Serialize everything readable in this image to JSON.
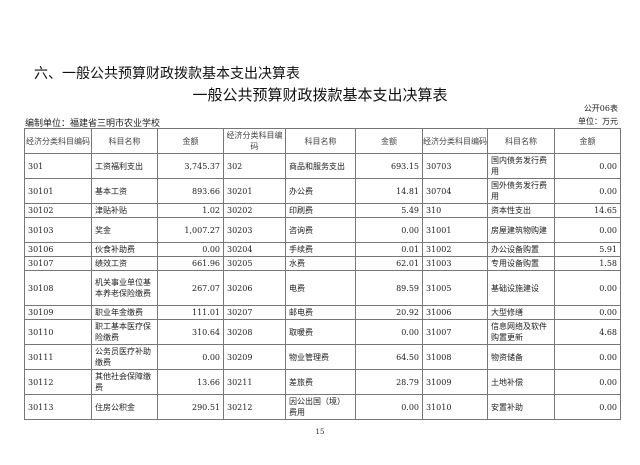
{
  "section_title": "六、一般公共预算财政拨款基本支出决算表",
  "table_title": "一般公共预算财政拨款基本支出决算表",
  "form_no": "公开06表",
  "org": "编制单位：福建省三明市农业学校",
  "unit": "单位：万元",
  "headers": [
    "经济分类科目编码",
    "科目名称",
    "金额",
    "经济分类科目编码",
    "科目名称",
    "金额",
    "经济分类科目编码",
    "科目名称",
    "金额"
  ],
  "rows": [
    [
      "301",
      "工资福利支出",
      "3,745.37",
      "302",
      "商品和服务支出",
      "693.15",
      "30703",
      "国内债务发行费用",
      "0.00"
    ],
    [
      "30101",
      "基本工资",
      "893.66",
      "30201",
      "办公费",
      "14.81",
      "30704",
      "国外债务发行费用",
      "0.00"
    ],
    [
      "30102",
      "津贴补贴",
      "1.02",
      "30202",
      "印刷费",
      "5.49",
      "310",
      "资本性支出",
      "14.65"
    ],
    [
      "30103",
      "奖金",
      "1,007.27",
      "30203",
      "咨询费",
      "0.00",
      "31001",
      "房屋建筑物购建",
      "0.00"
    ],
    [
      "30106",
      "伙食补助费",
      "0.00",
      "30204",
      "手续费",
      "0.01",
      "31002",
      "办公设备购置",
      "5.91"
    ],
    [
      "30107",
      "绩效工资",
      "661.96",
      "30205",
      "水费",
      "62.01",
      "31003",
      "专用设备购置",
      "1.58"
    ],
    [
      "30108",
      "机关事业单位基本养老保险缴费",
      "267.07",
      "30206",
      "电费",
      "89.59",
      "31005",
      "基础设施建设",
      "0.00"
    ],
    [
      "30109",
      "职业年金缴费",
      "111.01",
      "30207",
      "邮电费",
      "20.92",
      "31006",
      "大型修缮",
      "0.00"
    ],
    [
      "30110",
      "职工基本医疗保险缴费",
      "310.64",
      "30208",
      "取暖费",
      "0.00",
      "31007",
      "信息网络及软件购置更新",
      "4.68"
    ],
    [
      "30111",
      "公务员医疗补助缴费",
      "0.00",
      "30209",
      "物业管理费",
      "64.50",
      "31008",
      "物资储备",
      "0.00"
    ],
    [
      "30112",
      "其他社会保障缴费",
      "13.66",
      "30211",
      "差旅费",
      "28.79",
      "31009",
      "土地补偿",
      "0.00"
    ],
    [
      "30113",
      "住房公积金",
      "290.51",
      "30212",
      "因公出国（境）费用",
      "0.00",
      "31010",
      "安置补助",
      "0.00"
    ]
  ],
  "page_number": "15"
}
